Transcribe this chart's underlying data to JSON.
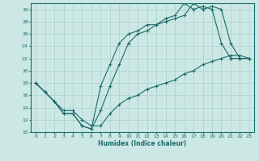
{
  "xlabel": "Humidex (Indice chaleur)",
  "bg_color": "#cce8e5",
  "grid_color": "#b0d4d0",
  "line_color": "#1a6b6b",
  "xlim": [
    -0.5,
    23.5
  ],
  "ylim": [
    10,
    31
  ],
  "yticks": [
    10,
    12,
    14,
    16,
    18,
    20,
    22,
    24,
    26,
    28,
    30
  ],
  "xticks": [
    0,
    1,
    2,
    3,
    4,
    5,
    6,
    7,
    8,
    9,
    10,
    11,
    12,
    13,
    14,
    15,
    16,
    17,
    18,
    19,
    20,
    21,
    22,
    23
  ],
  "line1_x": [
    0,
    1,
    2,
    3,
    4,
    5,
    6,
    7,
    8,
    9,
    10,
    11,
    12,
    13,
    14,
    15,
    16,
    17,
    18,
    19,
    20,
    21,
    22,
    23
  ],
  "line1_y": [
    18,
    16.5,
    15,
    13,
    13,
    11,
    10.5,
    17.5,
    21,
    24.5,
    26,
    26.5,
    27.5,
    27.5,
    28.5,
    29.0,
    31,
    30,
    30.5,
    30,
    24.5,
    22,
    22,
    22
  ],
  "line2_x": [
    0,
    1,
    2,
    3,
    4,
    5,
    6,
    7,
    8,
    9,
    10,
    11,
    12,
    13,
    14,
    15,
    16,
    17,
    18,
    19,
    20,
    21,
    22,
    23
  ],
  "line2_y": [
    18,
    16.5,
    15,
    13,
    13,
    11,
    10.5,
    13.5,
    17.5,
    21,
    24.5,
    26,
    26.5,
    27.5,
    28,
    28.5,
    29.0,
    31,
    30,
    30.5,
    30,
    24.5,
    22,
    22
  ],
  "line3_x": [
    0,
    1,
    2,
    3,
    4,
    5,
    6,
    7,
    8,
    9,
    10,
    11,
    12,
    13,
    14,
    15,
    16,
    17,
    18,
    19,
    20,
    21,
    22,
    23
  ],
  "line3_y": [
    18,
    16.5,
    15,
    13.5,
    13.5,
    12,
    11,
    11,
    13,
    14.5,
    15.5,
    16,
    17,
    17.5,
    18,
    18.5,
    19.5,
    20,
    21,
    21.5,
    22,
    22.5,
    22.5,
    22
  ]
}
